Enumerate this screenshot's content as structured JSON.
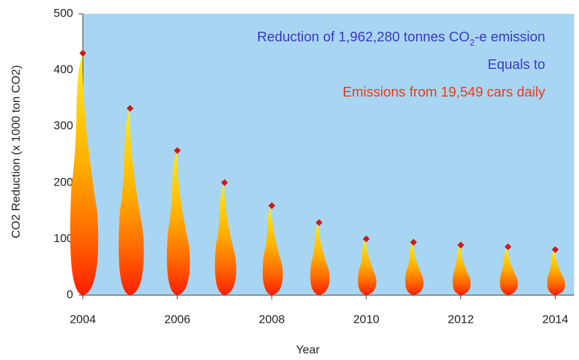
{
  "chart_data": {
    "type": "flame",
    "x_label": "Year",
    "y_label": "CO2 Reduction (x 1000 ton CO2)",
    "x": [
      2004,
      2005,
      2006,
      2007,
      2008,
      2009,
      2010,
      2011,
      2012,
      2013,
      2014
    ],
    "values": [
      430,
      332,
      257,
      200,
      159,
      129,
      100,
      94,
      89,
      86,
      81
    ],
    "marker_color": "#cc1a1a",
    "background": "#a8d5f2",
    "xlim": [
      2004,
      2014.4
    ],
    "xticks": [
      2004,
      2006,
      2008,
      2010,
      2012,
      2014
    ],
    "ylim": [
      0,
      500
    ],
    "yticks": [
      0,
      100,
      200,
      300,
      400,
      500
    ],
    "annotations": [
      {
        "parts": [
          "Reduction of 1,962,280 tonnes CO",
          "2",
          "-e emission"
        ],
        "color": "#3a3acc"
      },
      {
        "parts": [
          "Equals to"
        ],
        "color": "#3a3acc"
      },
      {
        "parts": [
          "Emissions from 19,549 cars daily"
        ],
        "color": "#f03a10"
      }
    ]
  }
}
